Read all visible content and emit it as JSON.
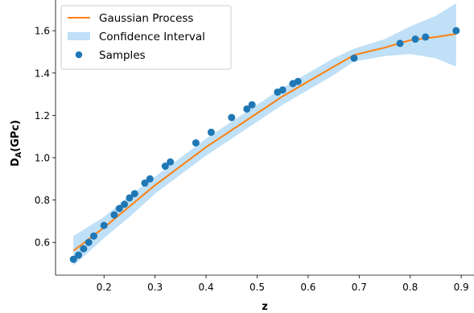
{
  "chart_data": {
    "type": "line",
    "title": "",
    "xlabel": "z",
    "ylabel_main": "D",
    "ylabel_sub": "A",
    "ylabel_unit": "(GPc)",
    "xlim": [
      0.105,
      0.925
    ],
    "ylim": [
      0.445,
      1.745
    ],
    "xticks": [
      0.2,
      0.3,
      0.4,
      0.5,
      0.6,
      0.7,
      0.8,
      0.9
    ],
    "yticks": [
      0.6,
      0.8,
      1.0,
      1.2,
      1.4,
      1.6
    ],
    "xtick_labels": [
      "0.2",
      "0.3",
      "0.4",
      "0.5",
      "0.6",
      "0.7",
      "0.8",
      "0.9"
    ],
    "ytick_labels": [
      "0.6",
      "0.8",
      "1.0",
      "1.2",
      "1.4",
      "1.6"
    ],
    "grid": false,
    "legend_position": "top-left",
    "colors": {
      "mean": "#ff7f0e",
      "band": "#bfe0f7",
      "samples": "#1f77b4"
    },
    "series": [
      {
        "name": "Gaussian Process",
        "kind": "line",
        "x": [
          0.14,
          0.2,
          0.25,
          0.3,
          0.35,
          0.4,
          0.45,
          0.5,
          0.55,
          0.6,
          0.65,
          0.69,
          0.75,
          0.8,
          0.85,
          0.89
        ],
        "y": [
          0.56,
          0.67,
          0.77,
          0.87,
          0.96,
          1.05,
          1.13,
          1.21,
          1.29,
          1.36,
          1.43,
          1.485,
          1.52,
          1.555,
          1.57,
          1.585
        ]
      },
      {
        "name": "Confidence Interval",
        "kind": "band",
        "x": [
          0.14,
          0.2,
          0.25,
          0.3,
          0.35,
          0.4,
          0.45,
          0.5,
          0.55,
          0.6,
          0.65,
          0.69,
          0.75,
          0.8,
          0.85,
          0.89
        ],
        "lower": [
          0.49,
          0.62,
          0.72,
          0.83,
          0.92,
          1.01,
          1.09,
          1.17,
          1.25,
          1.32,
          1.39,
          1.455,
          1.48,
          1.49,
          1.47,
          1.43
        ],
        "upper": [
          0.63,
          0.72,
          0.82,
          0.91,
          1.0,
          1.09,
          1.17,
          1.25,
          1.33,
          1.4,
          1.47,
          1.515,
          1.56,
          1.62,
          1.67,
          1.73
        ]
      },
      {
        "name": "Samples",
        "kind": "scatter",
        "x": [
          0.14,
          0.15,
          0.16,
          0.17,
          0.18,
          0.2,
          0.22,
          0.23,
          0.24,
          0.25,
          0.26,
          0.28,
          0.29,
          0.32,
          0.33,
          0.38,
          0.41,
          0.45,
          0.48,
          0.49,
          0.54,
          0.55,
          0.57,
          0.58,
          0.69,
          0.78,
          0.81,
          0.83,
          0.89
        ],
        "y": [
          0.52,
          0.54,
          0.57,
          0.6,
          0.63,
          0.68,
          0.73,
          0.76,
          0.78,
          0.81,
          0.83,
          0.88,
          0.9,
          0.96,
          0.98,
          1.07,
          1.12,
          1.19,
          1.23,
          1.25,
          1.31,
          1.32,
          1.35,
          1.36,
          1.47,
          1.54,
          1.56,
          1.57,
          1.6
        ]
      }
    ]
  }
}
